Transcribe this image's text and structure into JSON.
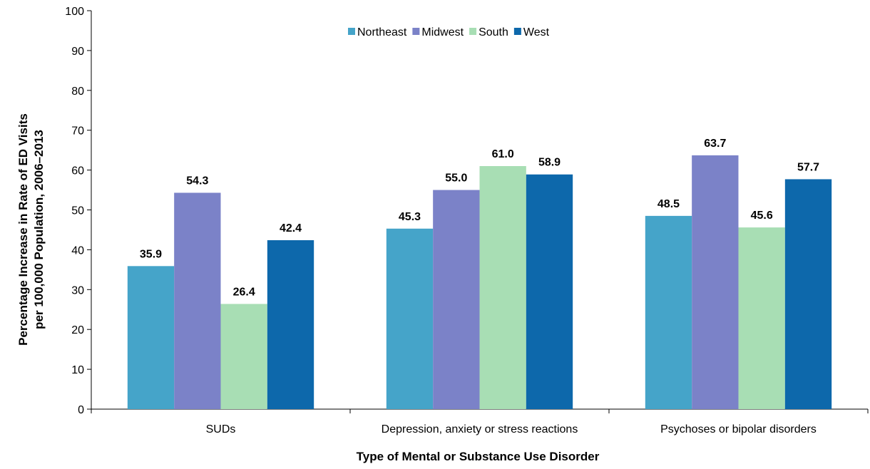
{
  "chart_data": {
    "type": "bar",
    "categories": [
      "SUDs",
      "Depression, anxiety or stress reactions",
      "Psychoses or bipolar disorders"
    ],
    "series": [
      {
        "name": "Northeast",
        "values": [
          35.9,
          45.3,
          48.5
        ],
        "color": "#45a4c9"
      },
      {
        "name": "Midwest",
        "values": [
          54.3,
          55.0,
          63.7
        ],
        "color": "#7b82c8"
      },
      {
        "name": "South",
        "values": [
          26.4,
          61.0,
          45.6
        ],
        "color": "#a8deb4"
      },
      {
        "name": "West",
        "values": [
          42.4,
          58.9,
          57.7
        ],
        "color": "#0d68ab"
      }
    ],
    "data_labels": [
      [
        "35.9",
        "45.3",
        "48.5"
      ],
      [
        "54.3",
        "55.0",
        "63.7"
      ],
      [
        "26.4",
        "61.0",
        "45.6"
      ],
      [
        "42.4",
        "58.9",
        "57.7"
      ]
    ],
    "ylim": [
      0,
      100
    ],
    "yticks": [
      "0",
      "10",
      "20",
      "30",
      "40",
      "50",
      "60",
      "70",
      "80",
      "90",
      "100"
    ],
    "xlabel": "Type of Mental or Substance Use Disorder",
    "ylabel_lines": [
      "Percentage Increase in Rate of ED Visits",
      "per 100,000 Population, 2006–2013"
    ],
    "legend_position": "top-center",
    "grid": false
  }
}
